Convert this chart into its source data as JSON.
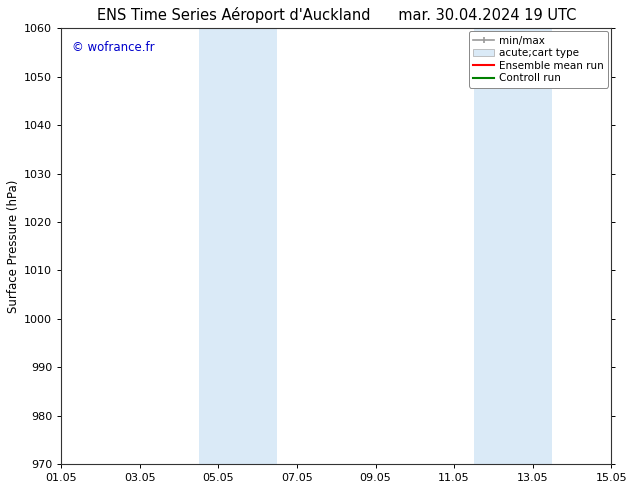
{
  "title_left": "ENS Time Series Aéroport d'Auckland",
  "title_right": "mar. 30.04.2024 19 UTC",
  "ylabel": "Surface Pressure (hPa)",
  "ylim": [
    970,
    1060
  ],
  "yticks": [
    970,
    980,
    990,
    1000,
    1010,
    1020,
    1030,
    1040,
    1050,
    1060
  ],
  "xtick_labels": [
    "01.05",
    "03.05",
    "05.05",
    "07.05",
    "09.05",
    "11.05",
    "13.05",
    "15.05"
  ],
  "xtick_positions": [
    0,
    2,
    4,
    6,
    8,
    10,
    12,
    14
  ],
  "xlim_start": 0,
  "xlim_end": 14,
  "shaded_regions": [
    {
      "xstart": 3.5,
      "xend": 5.5,
      "color": "#daeaf7"
    },
    {
      "xstart": 10.5,
      "xend": 12.5,
      "color": "#daeaf7"
    }
  ],
  "watermark": "© wofrance.fr",
  "watermark_color": "#0000cc",
  "legend_items": [
    {
      "label": "min/max",
      "type": "errorbar",
      "color": "#aaaaaa"
    },
    {
      "label": "acute;cart type",
      "type": "fill",
      "color": "#daeaf7"
    },
    {
      "label": "Ensemble mean run",
      "type": "line",
      "color": "red"
    },
    {
      "label": "Controll run",
      "type": "line",
      "color": "green"
    }
  ],
  "bg_color": "#ffffff",
  "title_fontsize": 10.5,
  "tick_fontsize": 8,
  "ylabel_fontsize": 8.5,
  "legend_fontsize": 7.5
}
